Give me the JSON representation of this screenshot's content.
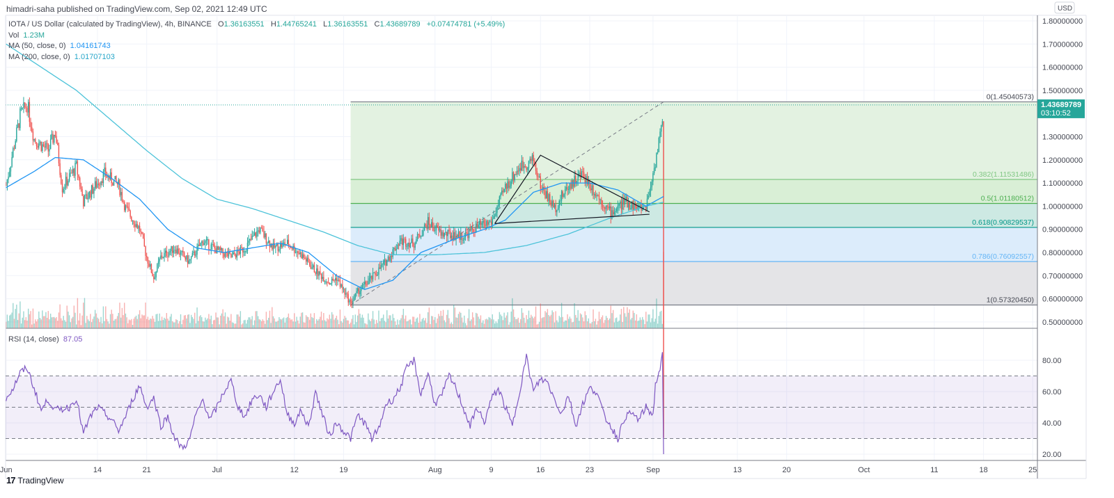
{
  "header": {
    "published": "himadri-saha published on TradingView.com, Sep 02, 2021 12:49 UTC"
  },
  "legend": {
    "symbol": "IOTA / US Dollar (calculated by TradingView), 4h, BINANCE",
    "o_label": "O",
    "o": "1.36163551",
    "h_label": "H",
    "h": "1.44765241",
    "l_label": "L",
    "l": "1.36163551",
    "c_label": "C",
    "c": "1.43689789",
    "change": "+0.07474781 (+5.49%)",
    "vol_label": "Vol",
    "vol": "1.23M",
    "ma50_label": "MA (50, close, 0)",
    "ma50": "1.04161743",
    "ma200_label": "MA (200, close, 0)",
    "ma200": "1.01707103"
  },
  "rsi_legend": {
    "label": "RSI (14, close)",
    "value": "87.05"
  },
  "price_axis": {
    "currency": "USD",
    "last_price": "1.43689789",
    "countdown": "03:10:52"
  },
  "footer": {
    "logo_text": "TradingView"
  },
  "colors": {
    "up": "#26a69a",
    "down": "#ef5350",
    "ma50": "#2196f3",
    "ma200": "#4dc3d9",
    "rsi": "#7e57c2",
    "last_price": "#26a69a"
  },
  "chart_data": [
    {
      "type": "candlestick",
      "timeframe": "4h",
      "ylim": [
        0.5,
        1.8
      ],
      "y_ticks": [
        "1.80000000",
        "1.70000000",
        "1.60000000",
        "1.50000000",
        "1.30000000",
        "1.20000000",
        "1.10000000",
        "1.00000000",
        "0.90000000",
        "0.80000000",
        "0.70000000",
        "0.60000000",
        "0.50000000"
      ],
      "x_ticks": [
        {
          "label": "Jun",
          "date": "2021-06-01"
        },
        {
          "label": "14",
          "date": "2021-06-14"
        },
        {
          "label": "21",
          "date": "2021-06-21"
        },
        {
          "label": "Jul",
          "date": "2021-07-01"
        },
        {
          "label": "12",
          "date": "2021-07-12"
        },
        {
          "label": "19",
          "date": "2021-07-19"
        },
        {
          "label": "Aug",
          "date": "2021-08-01"
        },
        {
          "label": "9",
          "date": "2021-08-09"
        },
        {
          "label": "16",
          "date": "2021-08-16"
        },
        {
          "label": "23",
          "date": "2021-08-23"
        },
        {
          "label": "Sep",
          "date": "2021-09-01"
        },
        {
          "label": "13",
          "date": "2021-09-13"
        },
        {
          "label": "20",
          "date": "2021-09-20"
        },
        {
          "label": "Oct",
          "date": "2021-10-01"
        },
        {
          "label": "11",
          "date": "2021-10-11"
        },
        {
          "label": "18",
          "date": "2021-10-18"
        },
        {
          "label": "25",
          "date": "2021-10-25"
        }
      ],
      "close_path": [
        [
          "2021-06-01",
          1.09
        ],
        [
          "2021-06-03",
          1.39
        ],
        [
          "2021-06-04",
          1.44
        ],
        [
          "2021-06-05",
          1.29
        ],
        [
          "2021-06-07",
          1.24
        ],
        [
          "2021-06-08",
          1.32
        ],
        [
          "2021-06-09",
          1.08
        ],
        [
          "2021-06-11",
          1.17
        ],
        [
          "2021-06-12",
          1.02
        ],
        [
          "2021-06-15",
          1.14
        ],
        [
          "2021-06-17",
          1.09
        ],
        [
          "2021-06-18",
          0.99
        ],
        [
          "2021-06-20",
          0.9
        ],
        [
          "2021-06-21",
          0.78
        ],
        [
          "2021-06-22",
          0.69
        ],
        [
          "2021-06-23",
          0.78
        ],
        [
          "2021-06-25",
          0.82
        ],
        [
          "2021-06-27",
          0.76
        ],
        [
          "2021-06-29",
          0.85
        ],
        [
          "2021-07-01",
          0.81
        ],
        [
          "2021-07-03",
          0.78
        ],
        [
          "2021-07-05",
          0.82
        ],
        [
          "2021-07-07",
          0.9
        ],
        [
          "2021-07-09",
          0.82
        ],
        [
          "2021-07-11",
          0.84
        ],
        [
          "2021-07-13",
          0.79
        ],
        [
          "2021-07-15",
          0.72
        ],
        [
          "2021-07-17",
          0.67
        ],
        [
          "2021-07-18",
          0.69
        ],
        [
          "2021-07-20",
          0.58
        ],
        [
          "2021-07-21",
          0.63
        ],
        [
          "2021-07-23",
          0.69
        ],
        [
          "2021-07-25",
          0.76
        ],
        [
          "2021-07-27",
          0.85
        ],
        [
          "2021-07-29",
          0.84
        ],
        [
          "2021-07-31",
          0.93
        ],
        [
          "2021-08-02",
          0.88
        ],
        [
          "2021-08-05",
          0.87
        ],
        [
          "2021-08-07",
          0.91
        ],
        [
          "2021-08-09",
          0.93
        ],
        [
          "2021-08-11",
          1.08
        ],
        [
          "2021-08-13",
          1.17
        ],
        [
          "2021-08-15",
          1.2
        ],
        [
          "2021-08-16",
          1.09
        ],
        [
          "2021-08-18",
          0.99
        ],
        [
          "2021-08-20",
          1.09
        ],
        [
          "2021-08-22",
          1.14
        ],
        [
          "2021-08-24",
          1.05
        ],
        [
          "2021-08-26",
          0.97
        ],
        [
          "2021-08-28",
          1.02
        ],
        [
          "2021-08-30",
          0.99
        ],
        [
          "2021-08-31",
          1.0
        ],
        [
          "2021-09-01",
          1.14
        ],
        [
          "2021-09-02 08:00",
          1.36
        ],
        [
          "2021-09-02 12:00",
          1.4369
        ]
      ],
      "ma50_path": [
        [
          "2021-06-01",
          1.08
        ],
        [
          "2021-06-05",
          1.15
        ],
        [
          "2021-06-08",
          1.21
        ],
        [
          "2021-06-12",
          1.2
        ],
        [
          "2021-06-16",
          1.12
        ],
        [
          "2021-06-20",
          1.03
        ],
        [
          "2021-06-24",
          0.9
        ],
        [
          "2021-06-28",
          0.82
        ],
        [
          "2021-07-02",
          0.8
        ],
        [
          "2021-07-06",
          0.82
        ],
        [
          "2021-07-10",
          0.84
        ],
        [
          "2021-07-14",
          0.8
        ],
        [
          "2021-07-18",
          0.7
        ],
        [
          "2021-07-22",
          0.64
        ],
        [
          "2021-07-26",
          0.68
        ],
        [
          "2021-07-30",
          0.8
        ],
        [
          "2021-08-04",
          0.86
        ],
        [
          "2021-08-08",
          0.9
        ],
        [
          "2021-08-11",
          0.94
        ],
        [
          "2021-08-15",
          1.06
        ],
        [
          "2021-08-19",
          1.1
        ],
        [
          "2021-08-23",
          1.1
        ],
        [
          "2021-08-27",
          1.07
        ],
        [
          "2021-08-31",
          1.0
        ],
        [
          "2021-09-02 12:00",
          1.0416
        ]
      ],
      "ma200_path": [
        [
          "2021-06-01",
          1.7
        ],
        [
          "2021-06-06",
          1.6
        ],
        [
          "2021-06-11",
          1.5
        ],
        [
          "2021-06-16",
          1.37
        ],
        [
          "2021-06-21",
          1.24
        ],
        [
          "2021-06-26",
          1.12
        ],
        [
          "2021-07-01",
          1.03
        ],
        [
          "2021-07-06",
          0.99
        ],
        [
          "2021-07-11",
          0.94
        ],
        [
          "2021-07-16",
          0.89
        ],
        [
          "2021-07-21",
          0.83
        ],
        [
          "2021-07-26",
          0.79
        ],
        [
          "2021-08-01",
          0.79
        ],
        [
          "2021-08-08",
          0.8
        ],
        [
          "2021-08-14",
          0.83
        ],
        [
          "2021-08-20",
          0.88
        ],
        [
          "2021-08-26",
          0.95
        ],
        [
          "2021-08-31",
          1.0
        ],
        [
          "2021-09-02 12:00",
          1.0171
        ]
      ],
      "fibonacci": {
        "from": [
          "2021-07-20",
          0.5732045
        ],
        "to": [
          "2021-09-02 12:00",
          1.45040573
        ],
        "levels": [
          {
            "level": "0",
            "price": "1.45040573",
            "value": 1.45040573,
            "color": "#787b86"
          },
          {
            "level": "0.382",
            "price": "1.11531486",
            "value": 1.11531486,
            "color": "#81c784"
          },
          {
            "level": "0.5",
            "price": "1.01180512",
            "value": 1.01180512,
            "color": "#4caf50"
          },
          {
            "level": "0.618",
            "price": "0.90829537",
            "value": 0.90829537,
            "color": "#009688"
          },
          {
            "level": "0.786",
            "price": "0.76092557",
            "value": 0.76092557,
            "color": "#64b5f6"
          },
          {
            "level": "1",
            "price": "0.57320450",
            "value": 0.5732045,
            "color": "#787b86"
          }
        ]
      },
      "trendlines": [
        [
          [
            "2021-08-09 12:00",
            0.925
          ],
          [
            "2021-08-16",
            1.22
          ],
          [
            "2021-08-31 12:00",
            0.975
          ]
        ],
        [
          [
            "2021-08-09 12:00",
            0.925
          ],
          [
            "2021-08-31 12:00",
            0.965
          ]
        ]
      ]
    },
    {
      "type": "line",
      "name": "RSI (14, close)",
      "ylim": [
        15,
        95
      ],
      "y_ticks": [
        "80.00",
        "60.00",
        "40.00",
        "20.00"
      ],
      "bands": [
        70,
        50,
        30
      ],
      "path": [
        [
          "2021-06-01",
          56
        ],
        [
          "2021-06-02",
          62
        ],
        [
          "2021-06-03",
          72
        ],
        [
          "2021-06-04",
          75
        ],
        [
          "2021-06-05",
          62
        ],
        [
          "2021-06-06",
          48
        ],
        [
          "2021-06-07",
          55
        ],
        [
          "2021-06-08",
          48
        ],
        [
          "2021-06-10",
          50
        ],
        [
          "2021-06-11",
          56
        ],
        [
          "2021-06-12",
          33
        ],
        [
          "2021-06-13",
          44
        ],
        [
          "2021-06-14",
          50
        ],
        [
          "2021-06-16",
          42
        ],
        [
          "2021-06-17",
          35
        ],
        [
          "2021-06-18",
          44
        ],
        [
          "2021-06-19",
          55
        ],
        [
          "2021-06-20",
          64
        ],
        [
          "2021-06-21",
          50
        ],
        [
          "2021-06-22",
          56
        ],
        [
          "2021-06-23",
          38
        ],
        [
          "2021-06-24",
          44
        ],
        [
          "2021-06-25",
          30
        ],
        [
          "2021-06-26",
          24
        ],
        [
          "2021-06-27",
          28
        ],
        [
          "2021-06-28",
          45
        ],
        [
          "2021-06-29",
          55
        ],
        [
          "2021-06-30",
          42
        ],
        [
          "2021-07-01",
          50
        ],
        [
          "2021-07-02",
          60
        ],
        [
          "2021-07-03",
          67
        ],
        [
          "2021-07-04",
          50
        ],
        [
          "2021-07-05",
          44
        ],
        [
          "2021-07-06",
          55
        ],
        [
          "2021-07-07",
          58
        ],
        [
          "2021-07-08",
          50
        ],
        [
          "2021-07-09",
          60
        ],
        [
          "2021-07-10",
          68
        ],
        [
          "2021-07-11",
          45
        ],
        [
          "2021-07-12",
          40
        ],
        [
          "2021-07-13",
          48
        ],
        [
          "2021-07-14",
          37
        ],
        [
          "2021-07-15",
          60
        ],
        [
          "2021-07-16",
          45
        ],
        [
          "2021-07-17",
          32
        ],
        [
          "2021-07-18",
          40
        ],
        [
          "2021-07-19",
          35
        ],
        [
          "2021-07-20",
          30
        ],
        [
          "2021-07-21",
          45
        ],
        [
          "2021-07-22",
          40
        ],
        [
          "2021-07-23",
          30
        ],
        [
          "2021-07-24",
          36
        ],
        [
          "2021-07-25",
          52
        ],
        [
          "2021-07-26",
          55
        ],
        [
          "2021-07-27",
          62
        ],
        [
          "2021-07-28",
          75
        ],
        [
          "2021-07-29",
          80
        ],
        [
          "2021-07-30",
          58
        ],
        [
          "2021-07-31",
          72
        ],
        [
          "2021-08-01",
          52
        ],
        [
          "2021-08-02",
          58
        ],
        [
          "2021-08-03",
          70
        ],
        [
          "2021-08-04",
          62
        ],
        [
          "2021-08-05",
          50
        ],
        [
          "2021-08-06",
          38
        ],
        [
          "2021-08-07",
          50
        ],
        [
          "2021-08-08",
          40
        ],
        [
          "2021-08-09",
          55
        ],
        [
          "2021-08-10",
          62
        ],
        [
          "2021-08-11",
          50
        ],
        [
          "2021-08-12",
          38
        ],
        [
          "2021-08-13",
          60
        ],
        [
          "2021-08-14",
          82
        ],
        [
          "2021-08-15",
          60
        ],
        [
          "2021-08-16",
          68
        ],
        [
          "2021-08-17",
          66
        ],
        [
          "2021-08-18",
          55
        ],
        [
          "2021-08-19",
          46
        ],
        [
          "2021-08-20",
          58
        ],
        [
          "2021-08-21",
          38
        ],
        [
          "2021-08-22",
          52
        ],
        [
          "2021-08-23",
          62
        ],
        [
          "2021-08-24",
          60
        ],
        [
          "2021-08-25",
          45
        ],
        [
          "2021-08-26",
          38
        ],
        [
          "2021-08-27",
          30
        ],
        [
          "2021-08-28",
          44
        ],
        [
          "2021-08-29",
          46
        ],
        [
          "2021-08-30",
          42
        ],
        [
          "2021-08-31",
          50
        ],
        [
          "2021-09-01",
          45
        ],
        [
          "2021-09-01 08:00",
          64
        ],
        [
          "2021-09-02",
          75
        ],
        [
          "2021-09-02 12:00",
          87.05
        ]
      ]
    }
  ]
}
